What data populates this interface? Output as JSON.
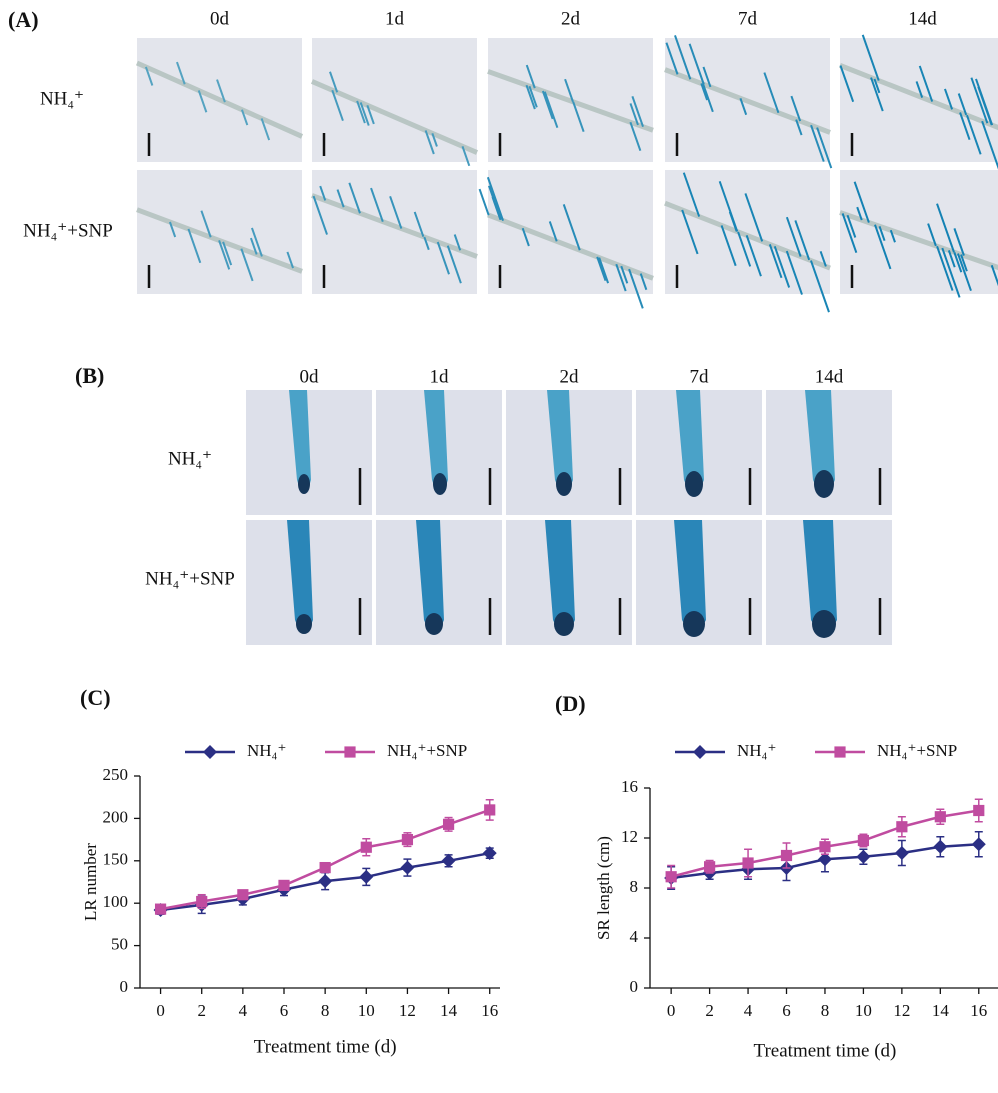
{
  "panels": [
    {
      "label": "(A)",
      "columns": [
        "0d",
        "1d",
        "2d",
        "7d",
        "14d"
      ],
      "rows": [
        "NH₄⁺",
        "NH₄⁺+SNP"
      ]
    },
    {
      "label": "(B)",
      "columns": [
        "0d",
        "1d",
        "2d",
        "7d",
        "14d"
      ],
      "rows": [
        "NH₄⁺",
        "NH₄⁺+SNP"
      ]
    }
  ],
  "chart_data": [
    {
      "type": "line",
      "title": "(C)",
      "xlabel": "Treatment time (d)",
      "ylabel": "LR number",
      "x": [
        0,
        2,
        4,
        6,
        8,
        10,
        12,
        14,
        16
      ],
      "series": [
        {
          "name": "NH₄⁺",
          "color": "#2b2f84",
          "marker": "diamond",
          "values": [
            92,
            98,
            105,
            116,
            126,
            131,
            142,
            150,
            159
          ],
          "errors": [
            5,
            10,
            7,
            7,
            10,
            10,
            10,
            7,
            6
          ]
        },
        {
          "name": "NH₄⁺+SNP",
          "color": "#c04ca0",
          "marker": "square",
          "values": [
            93,
            102,
            110,
            121,
            142,
            166,
            175,
            193,
            210
          ],
          "errors": [
            5,
            8,
            5,
            5,
            5,
            10,
            8,
            8,
            12
          ]
        }
      ],
      "xlim": [
        -1,
        16.5
      ],
      "xticks": [
        0,
        2,
        4,
        6,
        8,
        10,
        12,
        14,
        16
      ],
      "ylim": [
        0,
        250
      ],
      "yticks": [
        0,
        50,
        100,
        150,
        200,
        250
      ]
    },
    {
      "type": "line",
      "title": "(D)",
      "xlabel": "Treatment time (d)",
      "ylabel": "SR length (cm)",
      "x": [
        0,
        2,
        4,
        6,
        8,
        10,
        12,
        14,
        16
      ],
      "series": [
        {
          "name": "NH₄⁺",
          "color": "#2b2f84",
          "marker": "diamond",
          "values": [
            8.8,
            9.2,
            9.5,
            9.6,
            10.3,
            10.5,
            10.8,
            11.3,
            11.5
          ],
          "errors": [
            0.9,
            0.5,
            0.8,
            1.0,
            1.0,
            0.6,
            1.0,
            0.8,
            1.0
          ]
        },
        {
          "name": "NH₄⁺+SNP",
          "color": "#c04ca0",
          "marker": "square",
          "values": [
            8.9,
            9.7,
            10.0,
            10.6,
            11.3,
            11.8,
            12.9,
            13.7,
            14.2
          ],
          "errors": [
            0.9,
            0.5,
            1.1,
            1.0,
            0.6,
            0.5,
            0.8,
            0.6,
            0.9
          ]
        }
      ],
      "xlim": [
        -1.1,
        17
      ],
      "xticks": [
        0,
        2,
        4,
        6,
        8,
        10,
        12,
        14,
        16
      ],
      "ylim": [
        0,
        16
      ],
      "yticks": [
        0,
        4,
        8,
        12,
        16
      ]
    }
  ]
}
